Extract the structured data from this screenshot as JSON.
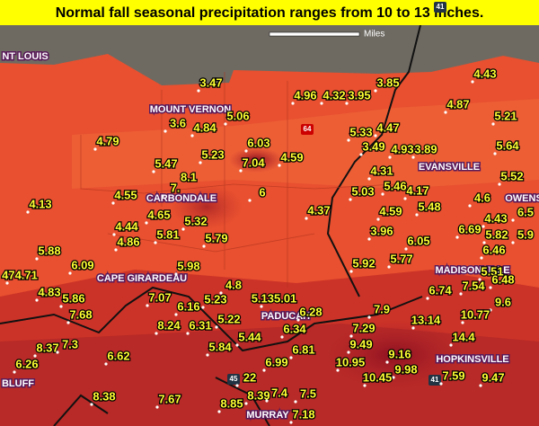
{
  "title": "Normal fall seasonal precipitation ranges from 10 to 13 inches.",
  "scale_label": "Miles",
  "highway_shields": [
    "41",
    "64",
    "45",
    "41"
  ],
  "cities": [
    "NT LOUIS",
    "MOUNT VERNON",
    "CARBONDALE",
    "CAPE GIRARDEAU",
    "PADUCAH",
    "EVANSVILLE",
    "OWENS",
    "MADISONVILLE",
    "HOPKINSVILLE",
    "MURRAY",
    "BLUFF"
  ],
  "values": [
    "3.47",
    "4.96",
    "4.32",
    "3.95",
    "3.85",
    "4.43",
    "4.87",
    "5.21",
    "5.06",
    "3.6",
    "4.84",
    "5.33",
    "4.47",
    "4.79",
    "6.03",
    "3.49",
    "4.93",
    "3.89",
    "5.64",
    "7.04",
    "4.59",
    "5.47",
    "5.23",
    "4.31",
    "5.52",
    "8.1",
    "7.",
    "5.03",
    "5.46",
    "4.17",
    "4.6",
    "4.55",
    "6",
    "4.13",
    "6.5",
    "4.65",
    "5.32",
    "4.37",
    "4.59",
    "5.48",
    "4.43",
    "4.44",
    "5.81",
    "3.96",
    "6.69",
    "5.82",
    "5.79",
    "6.05",
    "5.9",
    "4.86",
    "6.46",
    "5.88",
    "6.09",
    "5.98",
    "5.92",
    "5.77",
    "474.71",
    "4.83",
    "5.86",
    "7.07",
    "4.8",
    "6.74",
    "7.54",
    "5.51",
    "6.48",
    "6.16",
    "5.23",
    "5.135.01",
    "9.6",
    "7.68",
    "8.24",
    "6.31",
    "5.22",
    "6.28",
    "7.9",
    "13.14",
    "10.77",
    "6.34",
    "7.29",
    "5.44",
    "14.4",
    "8.37",
    "7.3",
    "5.84",
    "6.62",
    "6.81",
    "9.49",
    "10.95",
    "9.16",
    "9.98",
    "6.26",
    "6.99",
    "10.45",
    "7.59",
    "9.47",
    "22",
    "8.38",
    "7.67",
    "8.85",
    "8.39",
    "7.4",
    "7.5",
    "7.18"
  ]
}
